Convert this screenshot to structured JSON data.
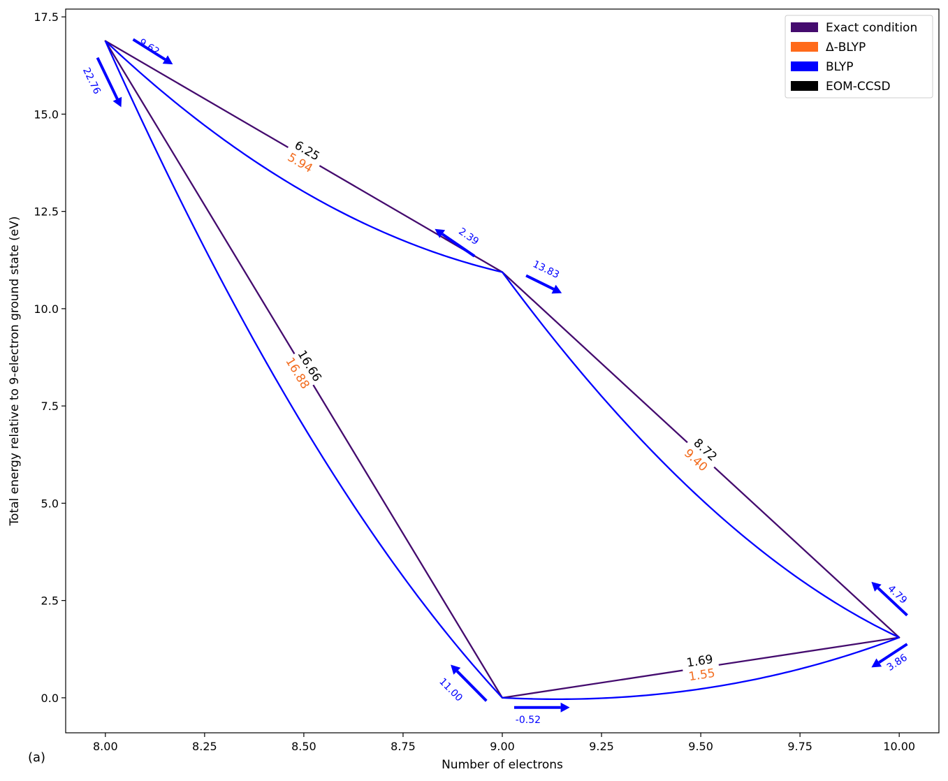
{
  "chart_data": {
    "type": "line",
    "panel_label": "(a)",
    "xlabel": "Number of electrons",
    "ylabel": "Total energy relative to 9-electron ground state (eV)",
    "xlim": [
      7.9,
      10.1
    ],
    "ylim": [
      -0.9,
      17.7
    ],
    "x_ticks": [
      8.0,
      8.25,
      8.5,
      8.75,
      9.0,
      9.25,
      9.5,
      9.75,
      10.0
    ],
    "x_tick_labels": [
      "8.00",
      "8.25",
      "8.50",
      "8.75",
      "9.00",
      "9.25",
      "9.50",
      "9.75",
      "10.00"
    ],
    "y_ticks": [
      0.0,
      2.5,
      5.0,
      7.5,
      10.0,
      12.5,
      15.0,
      17.5
    ],
    "y_tick_labels": [
      "0.0",
      "2.5",
      "5.0",
      "7.5",
      "10.0",
      "12.5",
      "15.0",
      "17.5"
    ],
    "grid": false,
    "legend_position": "top-right",
    "legend": [
      {
        "label": "Exact condition",
        "color": "#440b6e"
      },
      {
        "label": "Δ-BLYP",
        "color": "#ff6a1a"
      },
      {
        "label": "BLYP",
        "color": "#0000ff"
      },
      {
        "label": "EOM-CCSD",
        "color": "#000000"
      }
    ],
    "colors": {
      "exact": "#440b6e",
      "dblyp": "#f26b1d",
      "blyp": "#0000ff",
      "eom": "#000000"
    },
    "points": {
      "A": {
        "x": 8.0,
        "y": 16.88
      },
      "B": {
        "x": 9.0,
        "y": 10.94
      },
      "C": {
        "x": 9.0,
        "y": 0.0
      },
      "D": {
        "x": 10.0,
        "y": 1.55
      }
    },
    "exact_segments": [
      [
        "A",
        "B"
      ],
      [
        "A",
        "C"
      ],
      [
        "B",
        "D"
      ],
      [
        "C",
        "D"
      ]
    ],
    "blyp_curves": [
      {
        "from": "A",
        "to": "B",
        "slope_start": -9.62,
        "slope_end": -2.39
      },
      {
        "from": "A",
        "to": "C",
        "slope_start": -22.76,
        "slope_end": -11.0
      },
      {
        "from": "B",
        "to": "D",
        "slope_start": -13.83,
        "slope_end": -4.79
      },
      {
        "from": "C",
        "to": "D",
        "slope_start": -0.52,
        "slope_end": 3.86
      }
    ],
    "edge_labels": [
      {
        "segment": [
          "A",
          "B"
        ],
        "eom": "6.25",
        "dblyp": "5.94"
      },
      {
        "segment": [
          "A",
          "C"
        ],
        "eom": "16.66",
        "dblyp": "16.88"
      },
      {
        "segment": [
          "B",
          "D"
        ],
        "eom": "8.72",
        "dblyp": "9.40"
      },
      {
        "segment": [
          "C",
          "D"
        ],
        "eom": "1.69",
        "dblyp": "1.55"
      }
    ],
    "slope_arrows": [
      {
        "label": "9.62",
        "from": [
          8.07,
          16.92
        ],
        "to": [
          8.17,
          16.28
        ],
        "label_at": [
          8.11,
          16.72
        ]
      },
      {
        "label": "22.76",
        "from": [
          7.98,
          16.45
        ],
        "to": [
          8.04,
          15.18
        ],
        "label_at": [
          7.965,
          15.85
        ]
      },
      {
        "label": "2.39",
        "from": [
          8.93,
          11.35
        ],
        "to": [
          8.83,
          12.05
        ],
        "label_at": [
          8.915,
          11.85
        ]
      },
      {
        "label": "13.83",
        "from": [
          9.06,
          10.85
        ],
        "to": [
          9.15,
          10.4
        ],
        "label_at": [
          9.11,
          11.0
        ]
      },
      {
        "label": "4.79",
        "from": [
          10.02,
          2.12
        ],
        "to": [
          9.93,
          2.98
        ],
        "label_at": [
          9.995,
          2.65
        ]
      },
      {
        "label": "3.86",
        "from": [
          10.02,
          1.38
        ],
        "to": [
          9.93,
          0.78
        ],
        "label_at": [
          9.995,
          0.9
        ]
      },
      {
        "label": "11.00",
        "from": [
          8.96,
          -0.08
        ],
        "to": [
          8.87,
          0.85
        ],
        "label_at": [
          8.87,
          0.2
        ]
      },
      {
        "label": "-0.52",
        "from": [
          9.03,
          -0.25
        ],
        "to": [
          9.17,
          -0.25
        ],
        "label_at": [
          9.065,
          -0.58
        ]
      }
    ]
  }
}
